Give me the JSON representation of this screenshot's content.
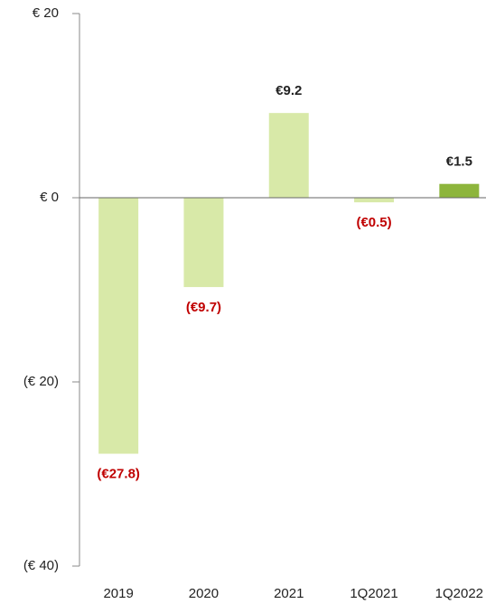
{
  "chart_data": {
    "type": "bar",
    "categories": [
      "2019",
      "2020",
      "2021",
      "1Q2021",
      "1Q2022"
    ],
    "values": [
      -27.8,
      -9.7,
      9.2,
      -0.5,
      1.5
    ],
    "value_labels": [
      "(€27.8)",
      "(€9.7)",
      "€9.2",
      "(€0.5)",
      "€1.5"
    ],
    "colors": [
      "#d8e9a8",
      "#d8e9a8",
      "#d8e9a8",
      "#d8e9a8",
      "#8db53c"
    ],
    "ylim": [
      -40,
      20
    ],
    "yticks": [
      {
        "value": -40,
        "label": "(€ 40)"
      },
      {
        "value": -20,
        "label": "(€ 20)"
      },
      {
        "value": 0,
        "label": "€ 0"
      },
      {
        "value": 20,
        "label": "€ 20"
      }
    ],
    "grid": false
  }
}
